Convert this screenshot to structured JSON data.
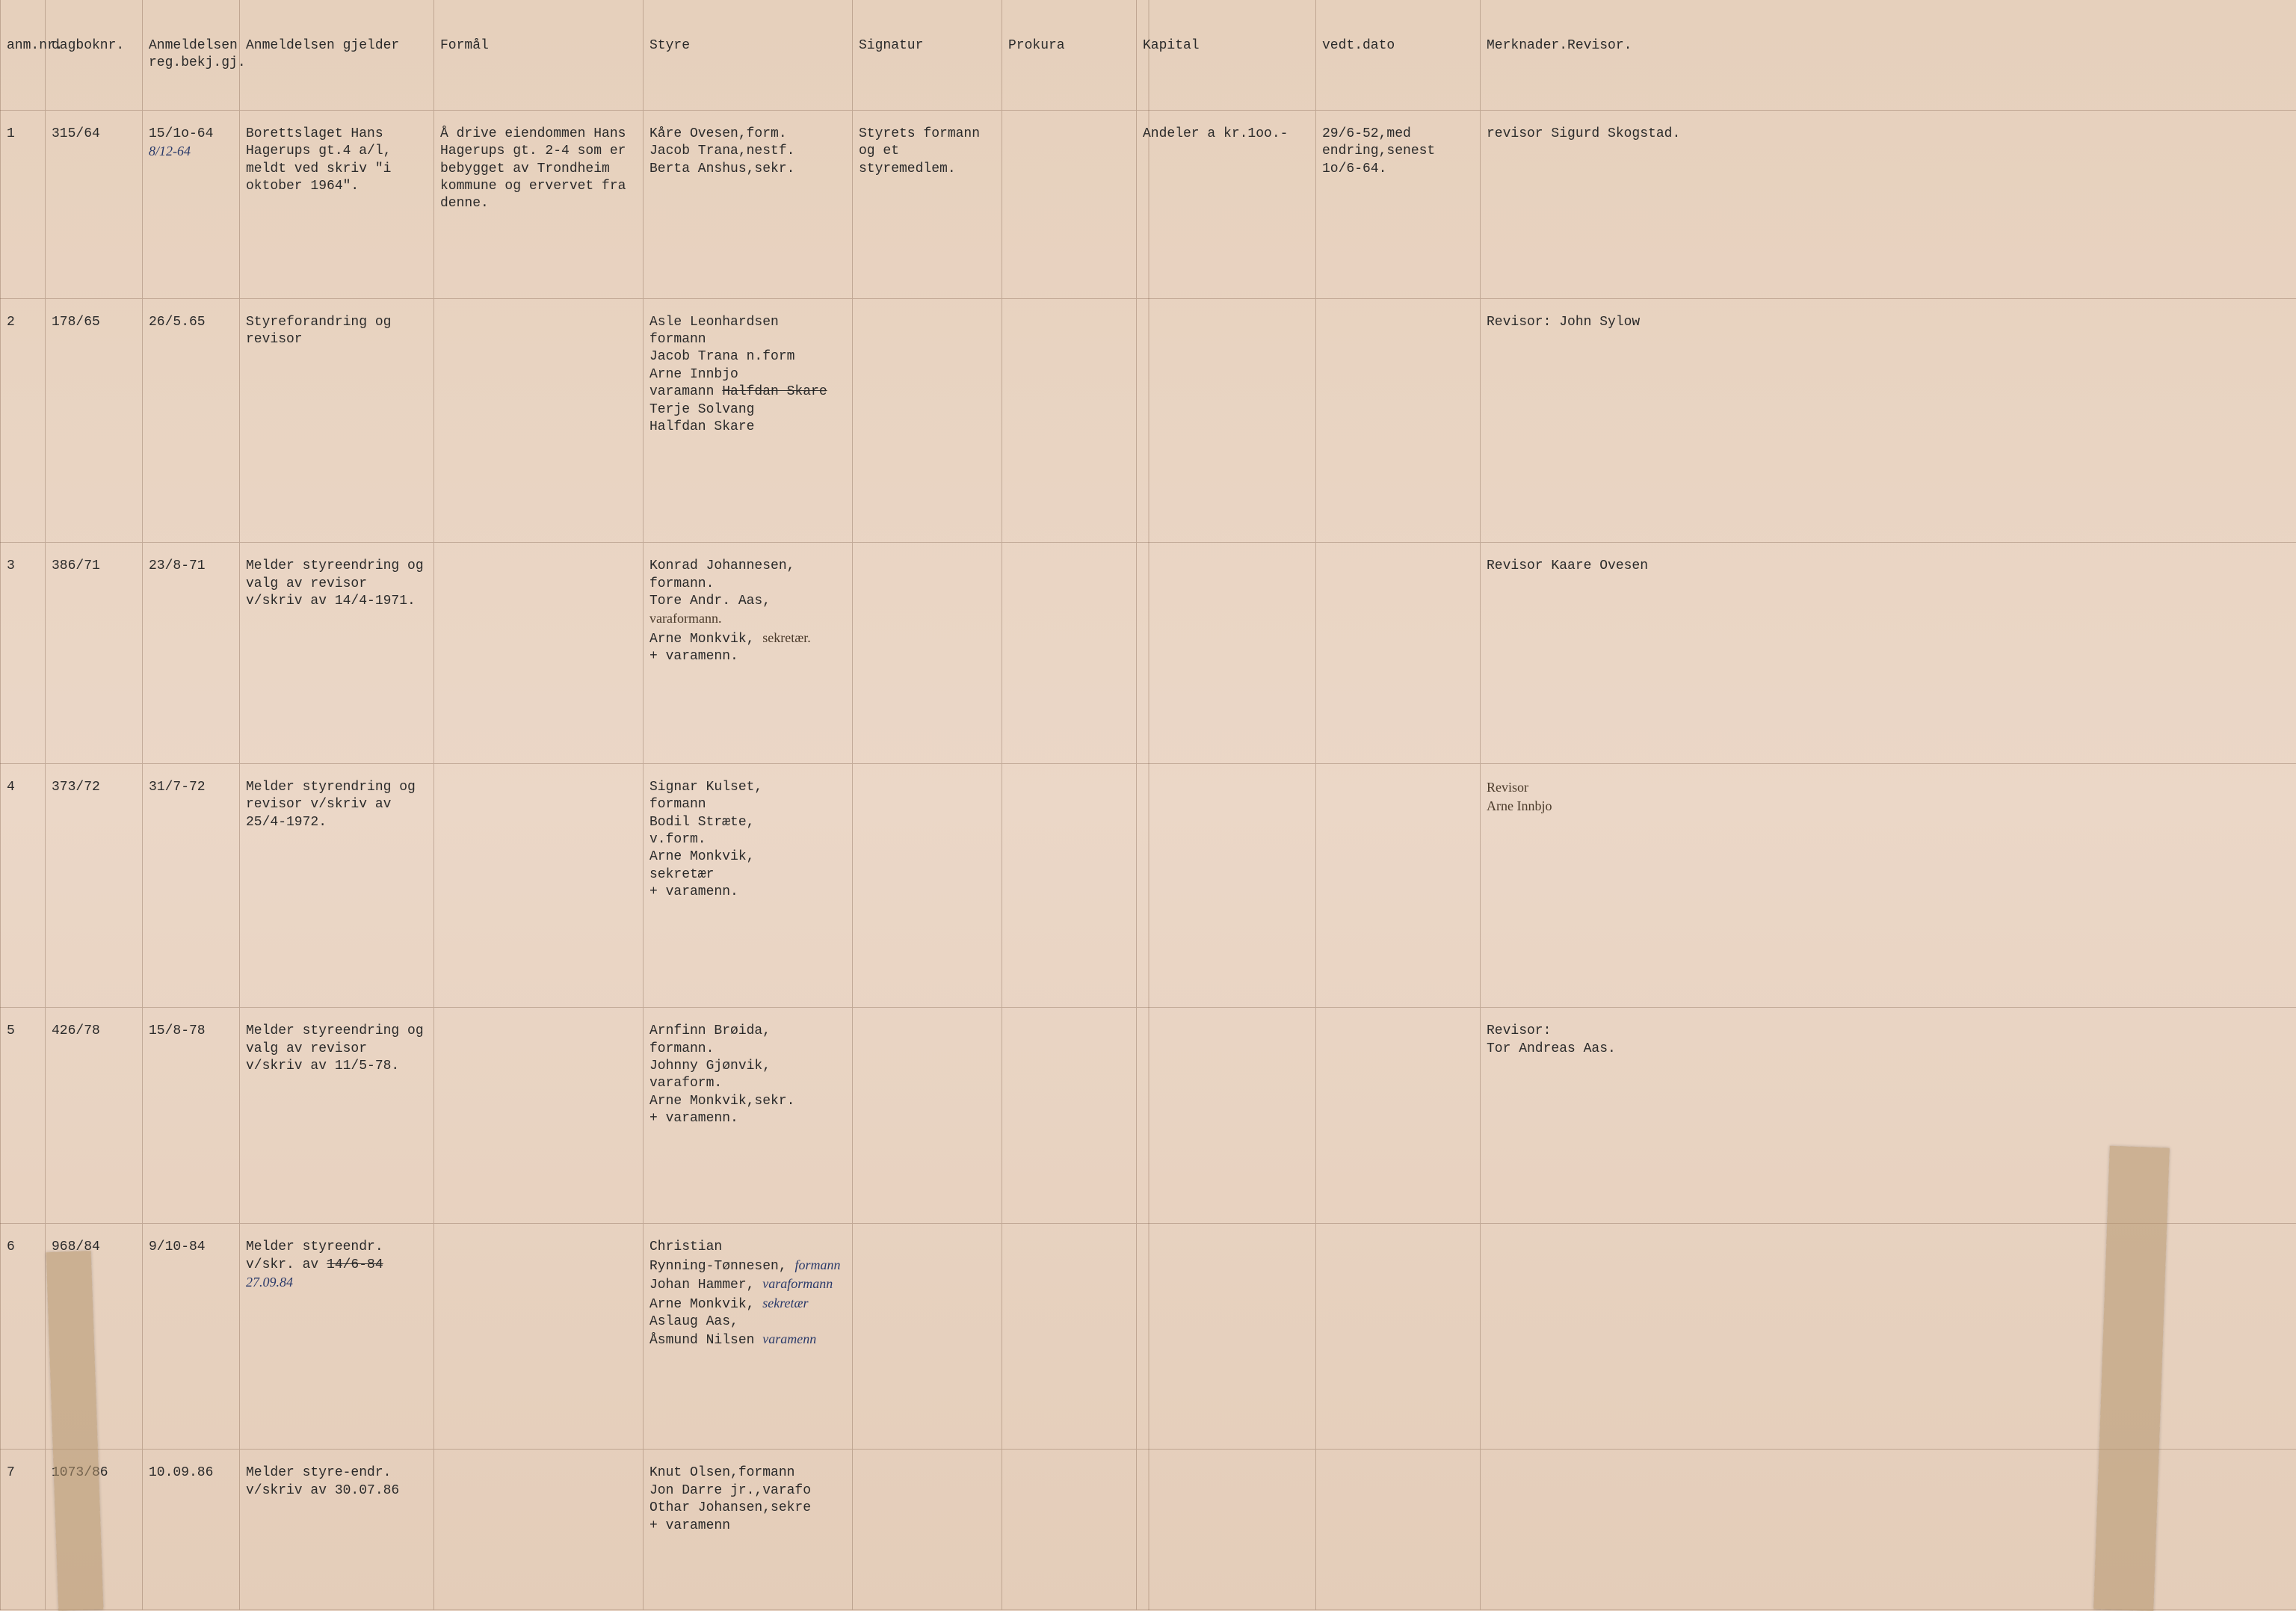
{
  "styling": {
    "background_color": "#e8d4c4",
    "gridline_color": "rgba(120,90,70,0.35)",
    "text_color": "#2a2a2a",
    "handwriting_blue": "#2a3a6a",
    "handwriting_brown": "#4a3a2a",
    "tape_color": "rgba(180,150,110,0.55)",
    "font_family": "Courier New",
    "header_fontsize_pt": 14,
    "cell_fontsize_pt": 14
  },
  "columns": {
    "anm": "anm.nr.",
    "dag": "dagboknr.",
    "reg": "Anmeldelsen reg.bekj.gj.",
    "gje": "Anmeldelsen gjelder",
    "for": "Formål",
    "sty": "Styre",
    "sig": "Signatur",
    "pro": "Prokura",
    "kap": "Kapital",
    "ved": "vedt.dato",
    "mer": "Merknader.Revisor."
  },
  "rows": [
    {
      "anm": "1",
      "dag": "315/64",
      "reg": "15/1o-64",
      "reg_hand": "8/12-64",
      "gje": "Borettslaget Hans Hagerups gt.4 a/l, meldt ved skriv \"i oktober 1964\".",
      "for": "Å drive eiendommen Hans Hagerups gt. 2-4 som er bebygget av Trondheim kommune og ervervet fra denne.",
      "sty": "Kåre Ovesen,form.\nJacob Trana,nestf.\nBerta Anshus,sekr.",
      "sig": "Styrets formann og et styremedlem.",
      "kap": "Andeler a kr.1oo.-",
      "ved": "29/6-52,med endring,senest 1o/6-64.",
      "mer": "revisor Sigurd Skogstad."
    },
    {
      "anm": "2",
      "dag": "178/65",
      "reg": "26/5.65",
      "gje": "Styreforandring og revisor",
      "sty": "Asle Leonhardsen\n        formann\nJacob Trana n.form\nArne Innbjo\nvaramann ",
      "sty_strike": "Halfdan Skare",
      "sty2": "Terje Solvang\nHalfdan Skare",
      "mer": "Revisor: John Sylow"
    },
    {
      "anm": "3",
      "dag": "386/71",
      "reg": "23/8-71",
      "gje": "Melder styreendring og valg av revisor v/skriv av 14/4-1971.",
      "sty": "Konrad Johannesen,\n        formann.\nTore Andr. Aas,",
      "sty_hand1": "varaformann.",
      "sty3": "Arne Monkvik,",
      "sty_hand2": "sekretær.",
      "sty4": "+ varamenn.",
      "mer": "Revisor Kaare Ovesen"
    },
    {
      "anm": "4",
      "dag": "373/72",
      "reg": "31/7-72",
      "gje": "Melder styrendring og revisor v/skriv av 25/4-1972.",
      "sty": "Signar Kulset,\nformann\nBodil Stræte,\nv.form.\nArne Monkvik,\nsekretær\n+ varamenn.",
      "mer_hand": "Revisor\nArne Innbjo"
    },
    {
      "anm": "5",
      "dag": "426/78",
      "reg": "15/8-78",
      "gje": "Melder styreendring og valg av revisor v/skriv av 11/5-78.",
      "sty": "Arnfinn Brøida,\n        formann.\nJohnny Gjønvik,\n        varaform.\nArne Monkvik,sekr.\n+ varamenn.",
      "mer": "Revisor:\nTor Andreas Aas."
    },
    {
      "anm": "6",
      "dag": "968/84",
      "reg": "9/10-84",
      "gje": "Melder styreendr. v/skr. av ",
      "gje_strike": "14/6-84",
      "gje_hand": "27.09.84",
      "sty": "Christian\nRynning-Tønnesen,",
      "sty_h1": "formann",
      "sty_l2": "Johan Hammer,",
      "sty_h2": "varaformann",
      "sty_l3": "Arne Monkvik,",
      "sty_h3": "sekretær",
      "sty_l4": "Aslaug Aas,",
      "sty_l5": "Åsmund Nilsen",
      "sty_h4": "varamenn"
    },
    {
      "anm": "7",
      "dag": "1073/86",
      "reg": "10.09.86",
      "gje": "Melder styre-endr. v/skriv av 30.07.86",
      "sty": "Knut Olsen,formann\nJon Darre jr.,varafo\nOthar Johansen,sekre\n+ varamenn"
    }
  ]
}
